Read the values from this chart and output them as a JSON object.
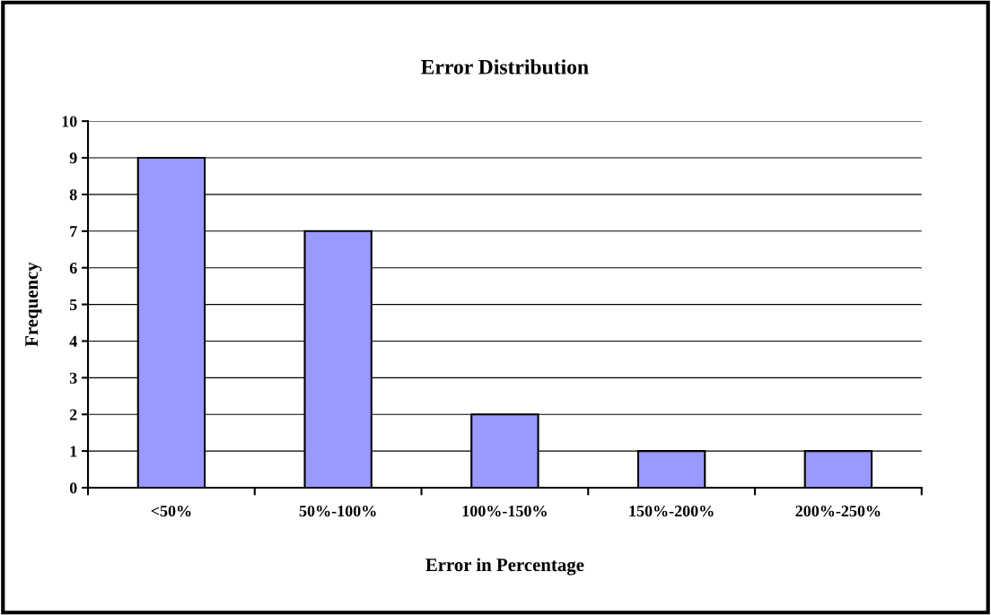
{
  "chart_data": {
    "type": "bar",
    "title": "Error Distribution",
    "xlabel": "Error in Percentage",
    "ylabel": "Frequency",
    "categories": [
      "<50%",
      "50%-100%",
      "100%-150%",
      "150%-200%",
      "200%-250%"
    ],
    "values": [
      9,
      7,
      2,
      1,
      1
    ],
    "color": "#9999ff",
    "ylim": [
      0,
      10
    ],
    "yticks": [
      0,
      1,
      2,
      3,
      4,
      5,
      6,
      7,
      8,
      9,
      10
    ],
    "grid": "y",
    "legend": false
  }
}
